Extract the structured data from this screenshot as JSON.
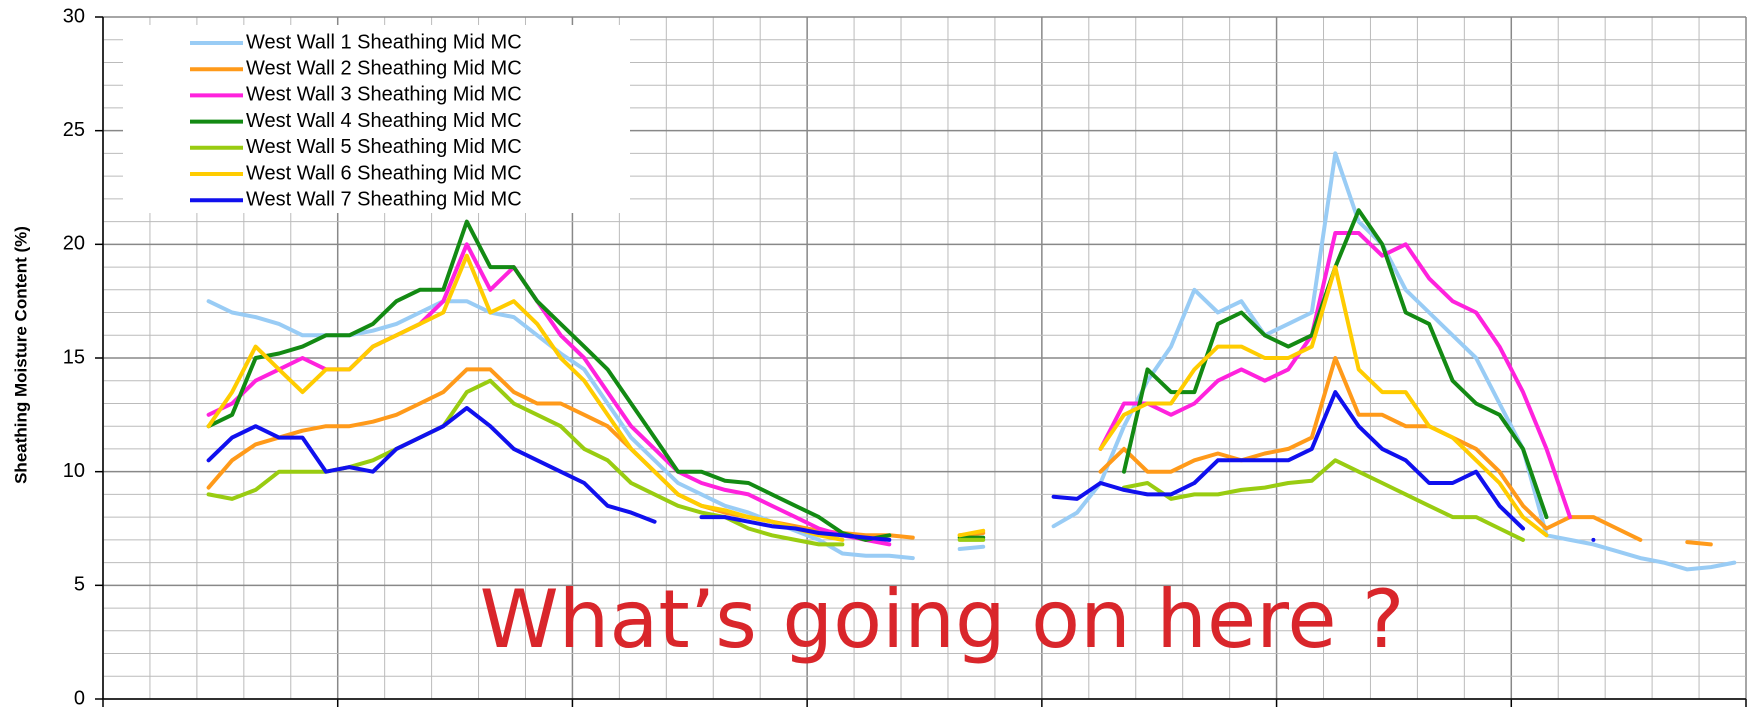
{
  "chart_data": {
    "type": "line",
    "y_label": "Sheathing Moisture Content (%)",
    "annotation": "What’s going on here ?",
    "categories": [
      null,
      null,
      null,
      null,
      null,
      null,
      null,
      null,
      null,
      null,
      null,
      null,
      null,
      null,
      null,
      null,
      null,
      null,
      null,
      null,
      null,
      null,
      null,
      null,
      null,
      null,
      null,
      null,
      null,
      null,
      null,
      null,
      null,
      null,
      null,
      null,
      null,
      null,
      null,
      null,
      null,
      null,
      null,
      null,
      null,
      null,
      null,
      null,
      null,
      null,
      null,
      null,
      null,
      null,
      null,
      null,
      null,
      null,
      null,
      null,
      null,
      null,
      null,
      null,
      null,
      null,
      null,
      null,
      null,
      null
    ],
    "ylim": [
      0,
      30
    ],
    "yticks": [
      0,
      5,
      10,
      15,
      20,
      25,
      30
    ],
    "grid": true,
    "legend": "upper left",
    "series": [
      {
        "name": "West Wall 1 Sheathing Mid MC",
        "color": "#99ccf5",
        "values": [
          null,
          null,
          null,
          null,
          17.5,
          17,
          16.8,
          16.5,
          16,
          16,
          16,
          16.2,
          16.5,
          17,
          17.5,
          17.5,
          17,
          16.8,
          16,
          15.2,
          14.5,
          13,
          11.5,
          10.5,
          9.5,
          9,
          8.5,
          8.2,
          7.8,
          7.4,
          7,
          6.4,
          6.3,
          6.3,
          6.2,
          null,
          6.6,
          6.7,
          null,
          null,
          7.6,
          8.2,
          9.5,
          12,
          14,
          15.5,
          18,
          17,
          17.5,
          16,
          16.5,
          17,
          24,
          21,
          20,
          18,
          17,
          16,
          15,
          13,
          11,
          7.2,
          7,
          6.8,
          6.5,
          6.2,
          6,
          5.7,
          5.8,
          6
        ]
      },
      {
        "name": "West Wall 2 Sheathing Mid MC",
        "color": "#ff9a1a",
        "values": [
          null,
          null,
          null,
          null,
          9.3,
          10.5,
          11.2,
          11.5,
          11.8,
          12,
          12,
          12.2,
          12.5,
          13,
          13.5,
          14.5,
          14.5,
          13.5,
          13,
          13,
          12.5,
          12,
          11,
          10,
          9,
          8.5,
          8.2,
          8,
          7.8,
          7.6,
          7.4,
          7.3,
          7.2,
          7.2,
          7.1,
          null,
          7.2,
          7.3,
          null,
          null,
          null,
          null,
          10,
          11,
          10,
          10,
          10.5,
          10.8,
          10.5,
          10.8,
          11,
          11.5,
          15,
          12.5,
          12.5,
          12,
          12,
          11.5,
          11,
          10,
          8.5,
          7.5,
          8,
          8,
          7.5,
          7,
          null,
          6.9,
          6.8,
          null
        ]
      },
      {
        "name": "West Wall 3 Sheathing Mid MC",
        "color": "#ff22dd",
        "values": [
          null,
          null,
          null,
          null,
          12.5,
          13,
          14,
          14.5,
          15,
          14.5,
          14.5,
          15.5,
          16,
          16.5,
          17.5,
          20,
          18,
          19,
          17.5,
          16,
          15,
          13.5,
          12,
          11,
          10,
          9.5,
          9.2,
          9,
          8.5,
          8,
          7.5,
          7.2,
          7,
          6.8,
          null,
          null,
          null,
          null,
          null,
          null,
          null,
          null,
          11,
          13,
          13,
          12.5,
          13,
          14,
          14.5,
          14,
          14.5,
          16,
          20.5,
          20.5,
          19.5,
          20,
          18.5,
          17.5,
          17,
          15.5,
          13.5,
          11,
          8,
          null,
          null,
          null,
          null,
          null,
          null,
          null
        ]
      },
      {
        "name": "West Wall 4 Sheathing Mid MC",
        "color": "#138a13",
        "values": [
          null,
          null,
          null,
          null,
          12,
          12.5,
          15,
          15.2,
          15.5,
          16,
          16,
          16.5,
          17.5,
          18,
          18,
          21,
          19,
          19,
          17.5,
          16.5,
          15.5,
          14.5,
          13,
          11.5,
          10,
          10,
          9.6,
          9.5,
          9,
          8.5,
          8,
          7.3,
          7,
          7.2,
          null,
          null,
          7.1,
          7.1,
          null,
          null,
          null,
          null,
          null,
          10,
          14.5,
          13.5,
          13.5,
          16.5,
          17,
          16,
          15.5,
          16,
          19,
          21.5,
          20,
          17,
          16.5,
          14,
          13,
          12.5,
          11,
          8,
          null,
          null,
          null,
          null,
          null,
          null,
          null,
          null
        ]
      },
      {
        "name": "West Wall 5 Sheathing Mid MC",
        "color": "#99cc11",
        "values": [
          null,
          null,
          null,
          null,
          9,
          8.8,
          9.2,
          10,
          10,
          10,
          10.2,
          10.5,
          11,
          11.5,
          12,
          13.5,
          14,
          13,
          12.5,
          12,
          11,
          10.5,
          9.5,
          9,
          8.5,
          8.2,
          8,
          7.5,
          7.2,
          7,
          6.8,
          6.8,
          null,
          null,
          null,
          null,
          7,
          7,
          null,
          null,
          null,
          null,
          null,
          9.3,
          9.5,
          8.8,
          9,
          9,
          9.2,
          9.3,
          9.5,
          9.6,
          10.5,
          10,
          9.5,
          9,
          8.5,
          8,
          8,
          7.5,
          7,
          null,
          null,
          null,
          null,
          null,
          null,
          null,
          null,
          null
        ]
      },
      {
        "name": "West Wall 6 Sheathing Mid MC",
        "color": "#ffcc00",
        "values": [
          null,
          null,
          null,
          null,
          12,
          13.5,
          15.5,
          14.5,
          13.5,
          14.5,
          14.5,
          15.5,
          16,
          16.5,
          17,
          19.5,
          17,
          17.5,
          16.5,
          15,
          14,
          12.5,
          11,
          10,
          9,
          8.5,
          8.3,
          8,
          7.8,
          7.5,
          7.2,
          7,
          null,
          null,
          null,
          null,
          7.2,
          7.4,
          null,
          null,
          null,
          null,
          11,
          12.5,
          13,
          13,
          14.5,
          15.5,
          15.5,
          15,
          15,
          15.5,
          19,
          14.5,
          13.5,
          13.5,
          12,
          11.5,
          10.5,
          9.5,
          8,
          7.2,
          null,
          null,
          null,
          null,
          null,
          null,
          null,
          null
        ]
      },
      {
        "name": "West Wall 7 Sheathing Mid MC",
        "color": "#1010ee",
        "values": [
          null,
          null,
          null,
          null,
          10.5,
          11.5,
          12,
          11.5,
          11.5,
          10,
          10.2,
          10,
          11,
          11.5,
          12,
          12.8,
          12,
          11,
          10.5,
          10,
          9.5,
          8.5,
          8.2,
          7.8,
          null,
          8,
          8,
          7.8,
          7.6,
          7.5,
          7.3,
          7.2,
          7.1,
          7,
          null,
          null,
          null,
          null,
          null,
          null,
          8.9,
          8.8,
          9.5,
          9.2,
          9,
          9,
          9.5,
          10.5,
          10.5,
          10.5,
          10.5,
          11,
          13.5,
          12,
          11,
          10.5,
          9.5,
          9.5,
          10,
          8.5,
          7.5,
          null,
          null,
          7,
          null,
          null,
          null,
          null,
          null,
          null
        ]
      }
    ]
  }
}
